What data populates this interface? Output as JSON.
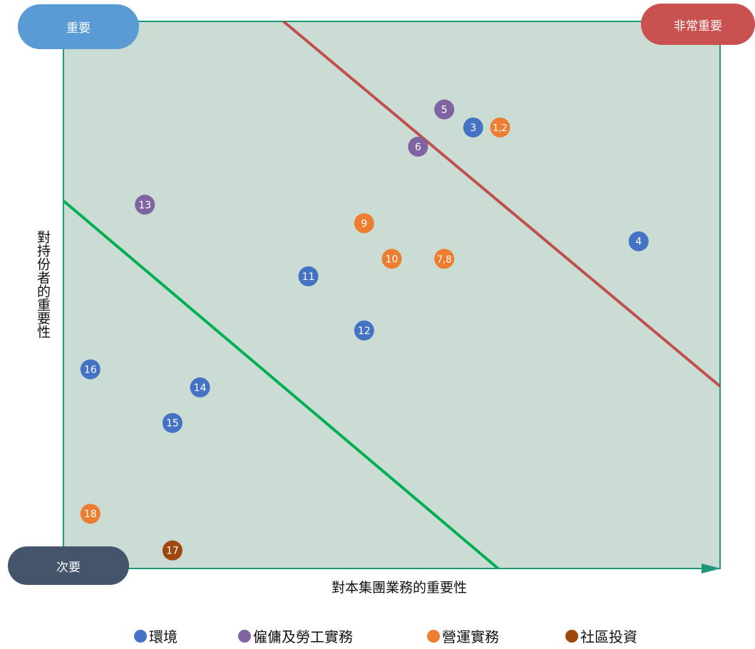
{
  "chart_data": {
    "type": "scatter",
    "title": "",
    "xlabel": "對本集團業務的重要性",
    "ylabel": "對持份者的重要性",
    "xlim": [
      0,
      100
    ],
    "ylim": [
      0,
      100
    ],
    "grid": false,
    "legend_position": "bottom",
    "corner_labels": {
      "top_left": "重要",
      "top_right": "非常重要",
      "bottom_left": "次要"
    },
    "categories": [
      {
        "id": "env",
        "name": "環境",
        "color": "#4472c4"
      },
      {
        "id": "emp",
        "name": "僱傭及勞工實務",
        "color": "#8064a2"
      },
      {
        "id": "ops",
        "name": "營運實務",
        "color": "#ed7d31"
      },
      {
        "id": "com",
        "name": "社區投資",
        "color": "#9e480e"
      }
    ],
    "points": [
      {
        "label": "1,2",
        "category": "ops",
        "x": 66.5,
        "y": 80.6
      },
      {
        "label": "3",
        "category": "env",
        "x": 62.4,
        "y": 80.6
      },
      {
        "label": "4",
        "category": "env",
        "x": 87.6,
        "y": 59.8
      },
      {
        "label": "5",
        "category": "emp",
        "x": 58.0,
        "y": 83.9
      },
      {
        "label": "6",
        "category": "emp",
        "x": 54.0,
        "y": 77.1
      },
      {
        "label": "7,8",
        "category": "ops",
        "x": 58.0,
        "y": 56.6
      },
      {
        "label": "9",
        "category": "ops",
        "x": 45.8,
        "y": 63.1
      },
      {
        "label": "10",
        "category": "ops",
        "x": 50.0,
        "y": 56.6
      },
      {
        "label": "11",
        "category": "env",
        "x": 37.3,
        "y": 53.4
      },
      {
        "label": "12",
        "category": "env",
        "x": 45.8,
        "y": 43.5
      },
      {
        "label": "13",
        "category": "emp",
        "x": 12.4,
        "y": 66.5
      },
      {
        "label": "14",
        "category": "env",
        "x": 20.8,
        "y": 33.1
      },
      {
        "label": "15",
        "category": "env",
        "x": 16.6,
        "y": 26.6
      },
      {
        "label": "16",
        "category": "env",
        "x": 4.1,
        "y": 36.4
      },
      {
        "label": "17",
        "category": "com",
        "x": 16.6,
        "y": 3.3
      },
      {
        "label": "18",
        "category": "ops",
        "x": 4.1,
        "y": 10.0
      }
    ],
    "threshold_lines": [
      {
        "name": "",
        "color": "#c0504d",
        "from": [
          33.5,
          100
        ],
        "to": [
          100,
          33.3
        ]
      },
      {
        "name": "",
        "color": "#00b050",
        "from": [
          0,
          67.2
        ],
        "to": [
          66.2,
          0
        ]
      }
    ],
    "plot_background": "#cadcd3",
    "axis_color": "#1a9a7a"
  }
}
